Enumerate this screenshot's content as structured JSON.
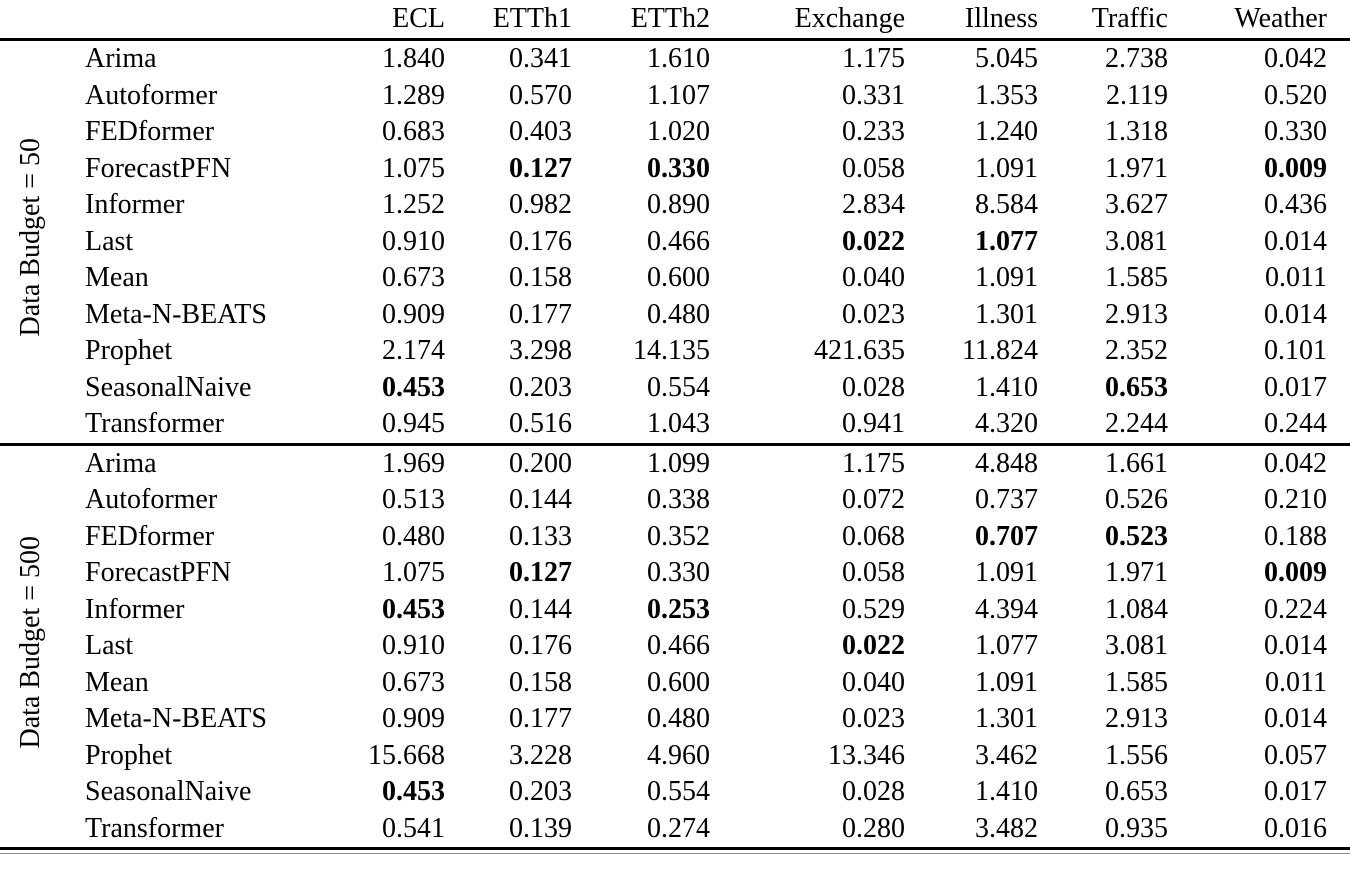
{
  "table": {
    "corner_blank": "",
    "columns": [
      "ECL",
      "ETTh1",
      "ETTh2",
      "Exchange",
      "Illness",
      "Traffic",
      "Weather"
    ],
    "groups": [
      {
        "label": "Data Budget = 50",
        "rows": [
          {
            "model": "Arima",
            "values": [
              "1.840",
              "0.341",
              "1.610",
              "1.175",
              "5.045",
              "2.738",
              "0.042"
            ],
            "bold": []
          },
          {
            "model": "Autoformer",
            "values": [
              "1.289",
              "0.570",
              "1.107",
              "0.331",
              "1.353",
              "2.119",
              "0.520"
            ],
            "bold": []
          },
          {
            "model": "FEDformer",
            "values": [
              "0.683",
              "0.403",
              "1.020",
              "0.233",
              "1.240",
              "1.318",
              "0.330"
            ],
            "bold": []
          },
          {
            "model": "ForecastPFN",
            "values": [
              "1.075",
              "0.127",
              "0.330",
              "0.058",
              "1.091",
              "1.971",
              "0.009"
            ],
            "bold": [
              1,
              2,
              6
            ]
          },
          {
            "model": "Informer",
            "values": [
              "1.252",
              "0.982",
              "0.890",
              "2.834",
              "8.584",
              "3.627",
              "0.436"
            ],
            "bold": []
          },
          {
            "model": "Last",
            "values": [
              "0.910",
              "0.176",
              "0.466",
              "0.022",
              "1.077",
              "3.081",
              "0.014"
            ],
            "bold": [
              3,
              4
            ]
          },
          {
            "model": "Mean",
            "values": [
              "0.673",
              "0.158",
              "0.600",
              "0.040",
              "1.091",
              "1.585",
              "0.011"
            ],
            "bold": []
          },
          {
            "model": "Meta-N-BEATS",
            "values": [
              "0.909",
              "0.177",
              "0.480",
              "0.023",
              "1.301",
              "2.913",
              "0.014"
            ],
            "bold": []
          },
          {
            "model": "Prophet",
            "values": [
              "2.174",
              "3.298",
              "14.135",
              "421.635",
              "11.824",
              "2.352",
              "0.101"
            ],
            "bold": []
          },
          {
            "model": "SeasonalNaive",
            "values": [
              "0.453",
              "0.203",
              "0.554",
              "0.028",
              "1.410",
              "0.653",
              "0.017"
            ],
            "bold": [
              0,
              5
            ]
          },
          {
            "model": "Transformer",
            "values": [
              "0.945",
              "0.516",
              "1.043",
              "0.941",
              "4.320",
              "2.244",
              "0.244"
            ],
            "bold": []
          }
        ]
      },
      {
        "label": "Data Budget = 500",
        "rows": [
          {
            "model": "Arima",
            "values": [
              "1.969",
              "0.200",
              "1.099",
              "1.175",
              "4.848",
              "1.661",
              "0.042"
            ],
            "bold": []
          },
          {
            "model": "Autoformer",
            "values": [
              "0.513",
              "0.144",
              "0.338",
              "0.072",
              "0.737",
              "0.526",
              "0.210"
            ],
            "bold": []
          },
          {
            "model": "FEDformer",
            "values": [
              "0.480",
              "0.133",
              "0.352",
              "0.068",
              "0.707",
              "0.523",
              "0.188"
            ],
            "bold": [
              4,
              5
            ]
          },
          {
            "model": "ForecastPFN",
            "values": [
              "1.075",
              "0.127",
              "0.330",
              "0.058",
              "1.091",
              "1.971",
              "0.009"
            ],
            "bold": [
              1,
              6
            ]
          },
          {
            "model": "Informer",
            "values": [
              "0.453",
              "0.144",
              "0.253",
              "0.529",
              "4.394",
              "1.084",
              "0.224"
            ],
            "bold": [
              0,
              2
            ]
          },
          {
            "model": "Last",
            "values": [
              "0.910",
              "0.176",
              "0.466",
              "0.022",
              "1.077",
              "3.081",
              "0.014"
            ],
            "bold": [
              3
            ]
          },
          {
            "model": "Mean",
            "values": [
              "0.673",
              "0.158",
              "0.600",
              "0.040",
              "1.091",
              "1.585",
              "0.011"
            ],
            "bold": []
          },
          {
            "model": "Meta-N-BEATS",
            "values": [
              "0.909",
              "0.177",
              "0.480",
              "0.023",
              "1.301",
              "2.913",
              "0.014"
            ],
            "bold": []
          },
          {
            "model": "Prophet",
            "values": [
              "15.668",
              "3.228",
              "4.960",
              "13.346",
              "3.462",
              "1.556",
              "0.057"
            ],
            "bold": []
          },
          {
            "model": "SeasonalNaive",
            "values": [
              "0.453",
              "0.203",
              "0.554",
              "0.028",
              "1.410",
              "0.653",
              "0.017"
            ],
            "bold": [
              0
            ]
          },
          {
            "model": "Transformer",
            "values": [
              "0.541",
              "0.139",
              "0.274",
              "0.280",
              "3.482",
              "0.935",
              "0.016"
            ],
            "bold": []
          }
        ]
      }
    ]
  }
}
